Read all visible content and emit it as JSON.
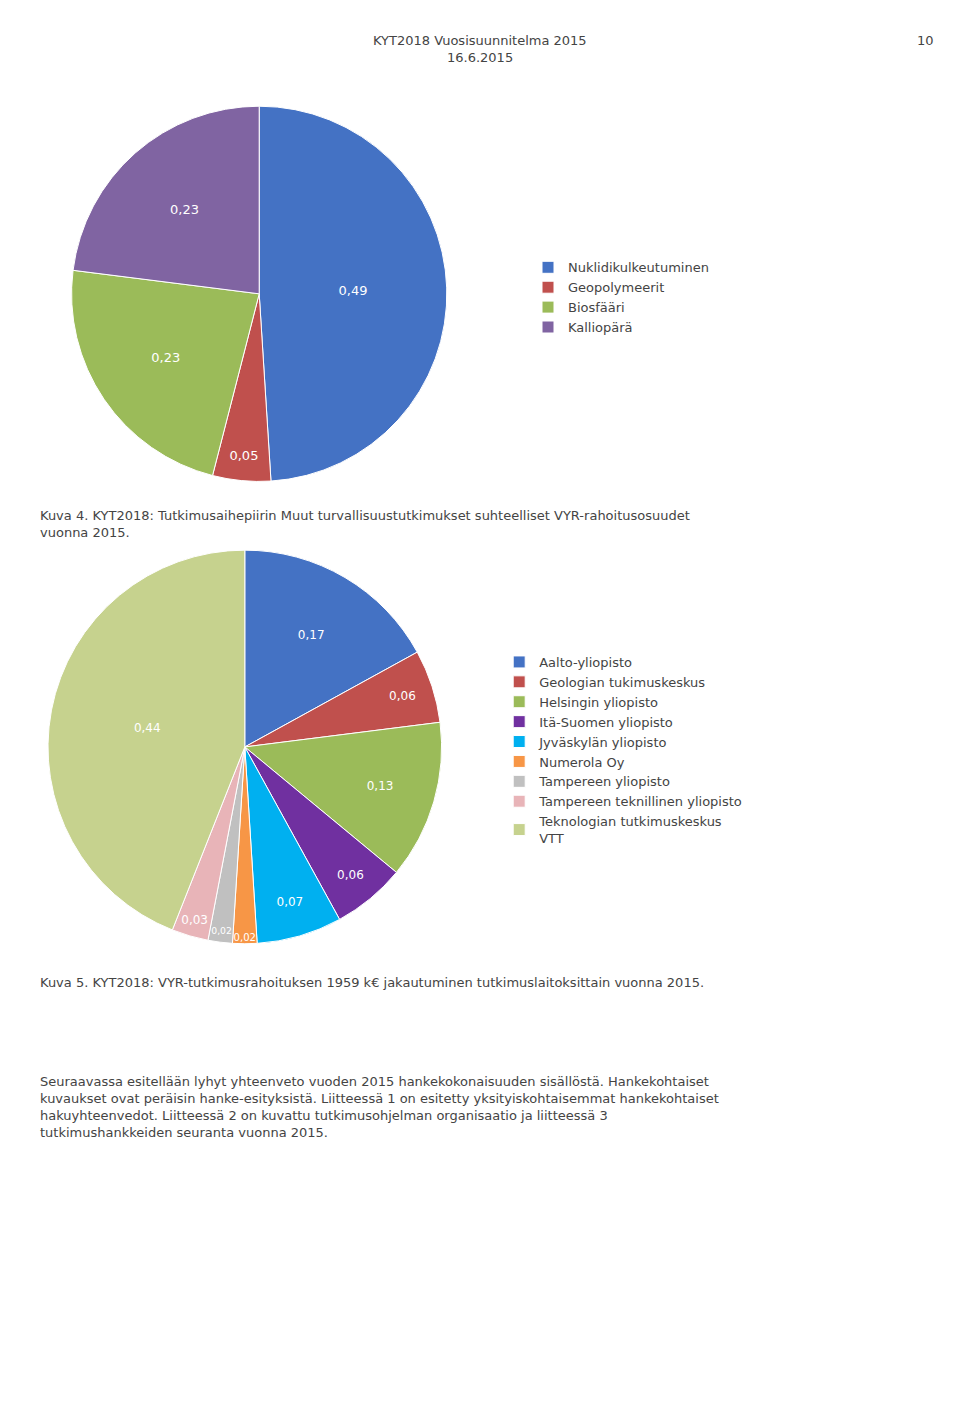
{
  "chart_data": [
    {
      "type": "pie",
      "title": "Kuva 4. KYT2018: Tutkimusaihepiirin Muut turvallisuustutkimukset suhteelliset VYR-rahoitusosuudet\nvuonna 2015.",
      "categories": [
        "Nuklidikulkeutuminen",
        "Geopolymeerit",
        "Biosfääri",
        "Kalliopärä"
      ],
      "values": [
        0.49,
        0.05,
        0.23,
        0.23
      ],
      "value_labels": [
        "0,49",
        "0,05",
        "0,23",
        "0,23"
      ],
      "colors": [
        "#4472C4",
        "#C0504D",
        "#9BBB59",
        "#8064A2"
      ],
      "data_labels": true,
      "legend": "right",
      "annotations": [
        "KYT2018 Vuosisuunnitelma 2015",
        "16.6.2015",
        "10"
      ]
    },
    {
      "type": "pie",
      "title": "Kuva 5. KYT2018: VYR-tutkimusrahoituksen 1959 k€ jakautuminen tutkimuslaitoksittain vuonna 2015.",
      "categories": [
        "Aalto-yliopisto",
        "Geologian tukimuskeskus",
        "Helsingin yliopisto",
        "Itä-Suomen yliopisto",
        "Jyväskylän yliopisto",
        "Numerola Oy",
        "Tampereen yliopisto",
        "Tampereen teknillinen yliopisto",
        "Teknologian tutkimuskeskus\nVTT"
      ],
      "values": [
        0.17,
        0.06,
        0.13,
        0.06,
        0.07,
        0.02,
        0.02,
        0.03,
        0.44
      ],
      "value_labels": [
        "0,17",
        "0,06",
        "0,13",
        "0,06",
        "0,07",
        "0,02",
        "0,02",
        "0,03",
        "0,44"
      ],
      "colors": [
        "#4472C4",
        "#C0504D",
        "#9BBB59",
        "#7030A0",
        "#00B0F0",
        "#F79646",
        "#C0C0C0",
        "#E8B4B8",
        "#C6D28E"
      ],
      "data_labels": true,
      "legend": "right",
      "annotations": [
        "Seuraavassa esitellään lyhyt yhteenveto vuoden 2015 hankekokonaisuuden sisällöstä. Hankekohtaiset\nkuvaukset ovat peräisin hanke-esityksistä. Liitteessä 1 on esitetty yksityiskohtaisemmat hankekohtaiset\nhakuyhteenvedot. Liitteessä 2 on kuvattu tutkimusohjelman organisaatio ja liitteessä 3\ntutkimushankkeiden seuranta vuonna 2015."
      ]
    }
  ]
}
